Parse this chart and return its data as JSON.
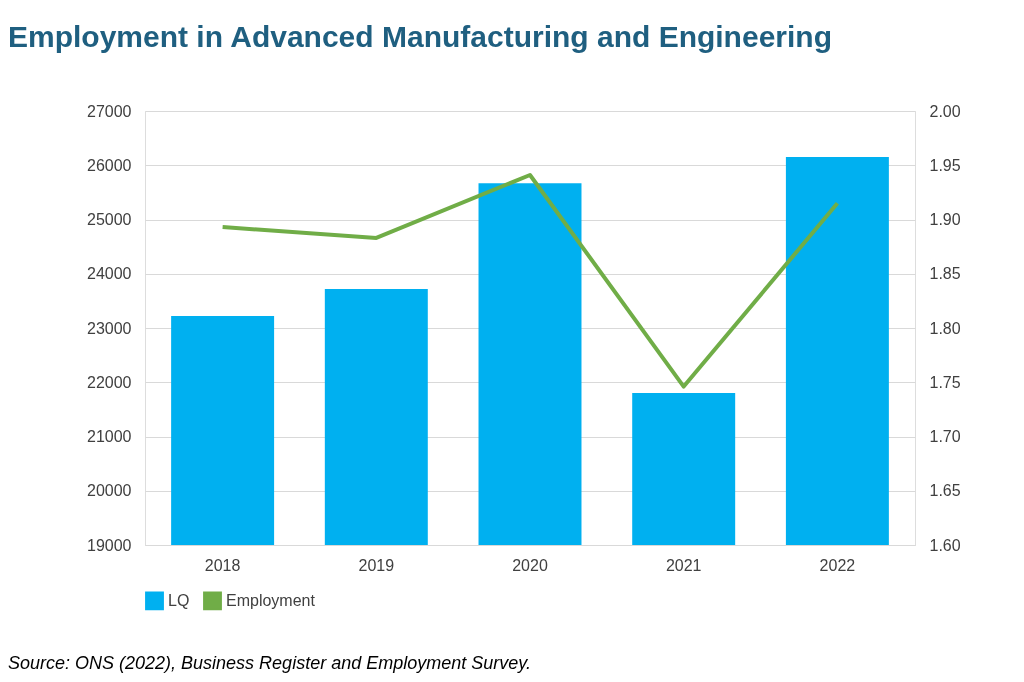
{
  "chart_data": {
    "type": "bar",
    "title": "Employment in Advanced Manufacturing and Engineering",
    "categories": [
      "2018",
      "2019",
      "2020",
      "2021",
      "2022"
    ],
    "series": [
      {
        "name": "LQ",
        "color": "#00b0f0",
        "values": [
          23220,
          23720,
          25670,
          21800,
          26150
        ]
      },
      {
        "name": "Employment",
        "type": "line",
        "axis": "y2",
        "color": "#70ad47",
        "values": [
          1.893,
          1.883,
          1.941,
          1.746,
          1.915
        ]
      }
    ],
    "ylim": [
      19000,
      27000
    ],
    "yticks": [
      19000,
      20000,
      21000,
      22000,
      23000,
      24000,
      25000,
      26000,
      27000
    ],
    "y2lim": [
      1.6,
      2.0
    ],
    "y2ticks": [
      {
        "value": 1.6,
        "label": "1.60"
      },
      {
        "value": 1.65,
        "label": "1.65"
      },
      {
        "value": 1.7,
        "label": "1.70"
      },
      {
        "value": 1.75,
        "label": "1.75"
      },
      {
        "value": 1.8,
        "label": "1.80"
      },
      {
        "value": 1.85,
        "label": "1.85"
      },
      {
        "value": 1.9,
        "label": "1.90"
      },
      {
        "value": 1.95,
        "label": "1.95"
      },
      {
        "value": 2.0,
        "label": "2.00"
      }
    ],
    "grid": "y",
    "legend": "bottom",
    "marker": "none",
    "line_style": "solid",
    "annotations": [
      "Source: ONS (2022), Business Register and Employment Survey."
    ]
  }
}
